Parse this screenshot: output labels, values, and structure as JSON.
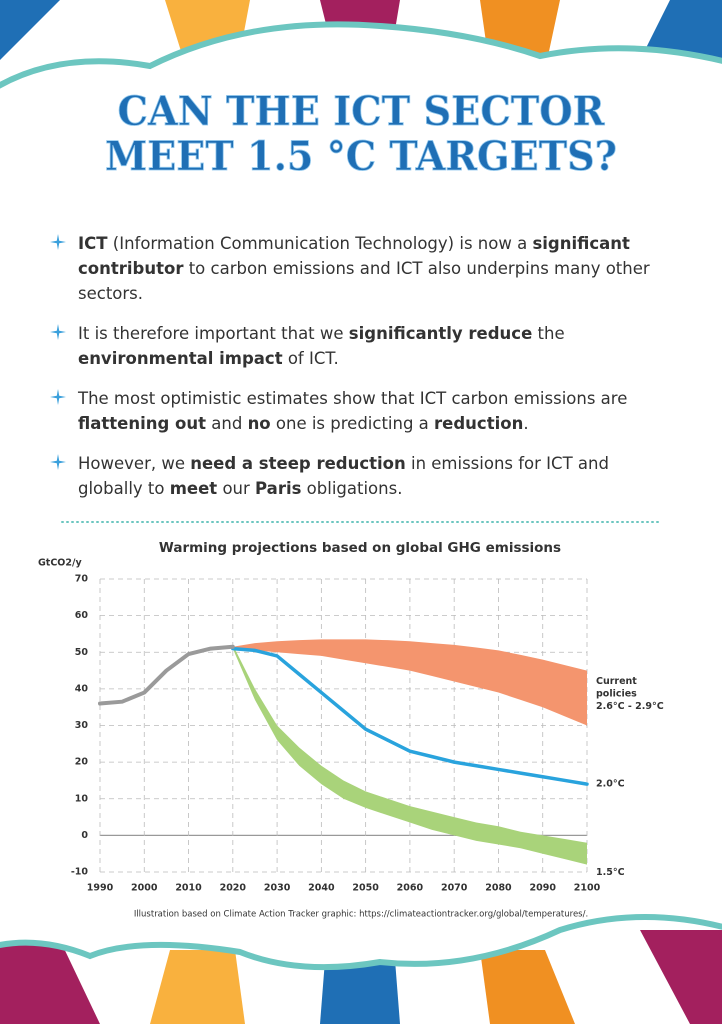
{
  "title": [
    "CAN THE ICT SECTOR",
    "MEET 1.5 °C TARGETS?"
  ],
  "bullets": [
    [
      {
        "text": "ICT",
        "bold": true
      },
      {
        "text": " (Information Communication Technology) is now a ",
        "bold": false
      },
      {
        "text": "significant contributor",
        "bold": true
      },
      {
        "text": " to carbon emissions and ICT also underpins many other sectors.",
        "bold": false
      }
    ],
    [
      {
        "text": "It is therefore important that we ",
        "bold": false
      },
      {
        "text": "significantly reduce",
        "bold": true
      },
      {
        "text": " the ",
        "bold": false
      },
      {
        "text": "environmental impact",
        "bold": true
      },
      {
        "text": " of ICT.",
        "bold": false
      }
    ],
    [
      {
        "text": "The most optimistic estimates show that ICT carbon emissions are ",
        "bold": false
      },
      {
        "text": "flattening out",
        "bold": true
      },
      {
        "text": " and ",
        "bold": false
      },
      {
        "text": "no",
        "bold": true
      },
      {
        "text": " one is predicting a ",
        "bold": false
      },
      {
        "text": "reduction",
        "bold": true
      },
      {
        "text": ".",
        "bold": false
      }
    ],
    [
      {
        "text": "However, we ",
        "bold": false
      },
      {
        "text": "need a steep reduction",
        "bold": true
      },
      {
        "text": " in emissions for ICT and globally to ",
        "bold": false
      },
      {
        "text": "meet",
        "bold": true
      },
      {
        "text": " our ",
        "bold": false
      },
      {
        "text": "Paris",
        "bold": true
      },
      {
        "text": " obligations.",
        "bold": false
      }
    ]
  ],
  "chart_data": {
    "type": "line",
    "title": "Warming projections based on global GHG emissions",
    "ylabel": "GtCO2/y",
    "source": "Illustration based on Climate Action Tracker graphic: https://climateactiontracker.org/global/temperatures/.",
    "x": [
      1990,
      1995,
      2000,
      2005,
      2010,
      2015,
      2020,
      2025,
      2030,
      2035,
      2040,
      2045,
      2050,
      2055,
      2060,
      2065,
      2070,
      2075,
      2080,
      2085,
      2090,
      2095,
      2100
    ],
    "xlim": [
      1990,
      2100
    ],
    "ylim": [
      -10,
      70
    ],
    "xticks": [
      1990,
      2000,
      2010,
      2020,
      2030,
      2040,
      2050,
      2060,
      2070,
      2080,
      2090,
      2100
    ],
    "yticks": [
      -10,
      0,
      10,
      20,
      30,
      40,
      50,
      60,
      70
    ],
    "grid": true,
    "series": [
      {
        "kind": "band",
        "label": [
          "Current",
          "policies",
          "2.6°C - 2.9°C"
        ],
        "color": "#f4956e",
        "upper": [
          null,
          null,
          null,
          null,
          null,
          null,
          51.5,
          52.5,
          53,
          53.3,
          53.5,
          53.5,
          53.5,
          53.3,
          53,
          52.5,
          52,
          51.3,
          50.5,
          49.3,
          48,
          46.5,
          45
        ],
        "lower": [
          null,
          null,
          null,
          null,
          null,
          null,
          51,
          50.5,
          50,
          49.5,
          49,
          48,
          47,
          46,
          45,
          43.5,
          42,
          40.5,
          39,
          37,
          35,
          32.5,
          30
        ]
      },
      {
        "kind": "band",
        "label": [
          "1.5°C"
        ],
        "color": "#a9d37a",
        "upper": [
          null,
          null,
          null,
          null,
          null,
          null,
          52,
          40,
          30,
          24,
          19,
          15,
          12,
          10,
          8,
          6.5,
          5,
          3.5,
          2.5,
          1,
          0,
          -1,
          -2
        ],
        "lower": [
          null,
          null,
          null,
          null,
          null,
          null,
          51,
          37,
          26,
          19,
          14,
          10,
          7.5,
          5.5,
          3.5,
          1.5,
          0,
          -1.5,
          -2.5,
          -3.5,
          -5,
          -6.5,
          -8
        ]
      },
      {
        "kind": "line",
        "label": [
          "2.0°C"
        ],
        "color": "#29a3dd",
        "values": [
          null,
          null,
          null,
          null,
          null,
          null,
          51,
          50.5,
          49,
          44,
          39,
          34,
          29,
          26,
          23,
          21.5,
          20,
          19,
          18,
          17,
          16,
          15,
          14
        ]
      },
      {
        "kind": "line",
        "color": "#9a9a9a",
        "values": [
          36,
          36.5,
          39,
          45,
          49.5,
          51,
          51.5,
          null,
          null,
          null,
          null,
          null,
          null,
          null,
          null,
          null,
          null,
          null,
          null,
          null,
          null,
          null,
          null
        ]
      }
    ]
  }
}
